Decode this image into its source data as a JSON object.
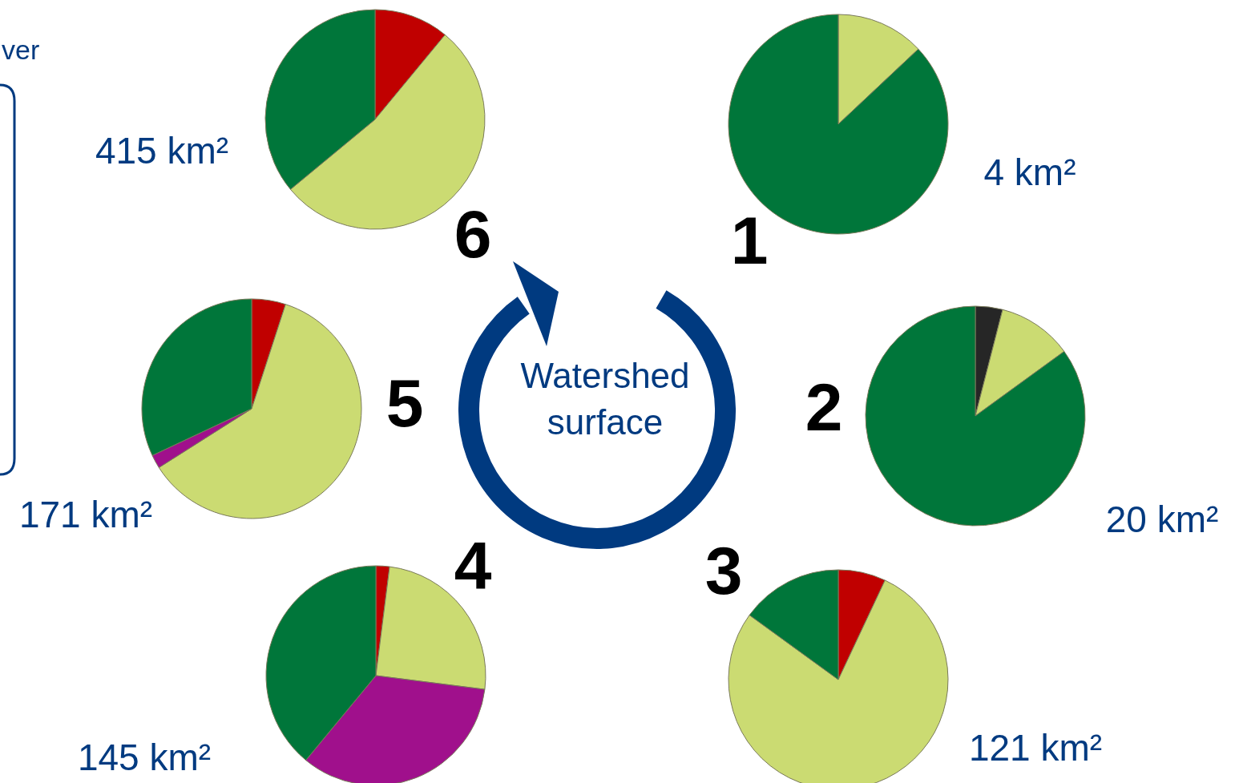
{
  "chart_data": [
    {
      "type": "pie",
      "title": "1",
      "annotations": [
        "4 km²"
      ],
      "categories": [
        null,
        null
      ],
      "values": [
        13,
        87
      ],
      "colors": [
        "#cbdb72",
        "#00763a"
      ]
    },
    {
      "type": "pie",
      "title": "2",
      "annotations": [
        "20 km²"
      ],
      "categories": [
        null,
        null,
        null
      ],
      "values": [
        4,
        11,
        85
      ],
      "colors": [
        "#262626",
        "#cbdb72",
        "#00763a"
      ]
    },
    {
      "type": "pie",
      "title": "3",
      "annotations": [
        "121 km²"
      ],
      "categories": [
        null,
        null,
        null
      ],
      "values": [
        7,
        78,
        15
      ],
      "colors": [
        "#c00000",
        "#cbdb72",
        "#00763a"
      ]
    },
    {
      "type": "pie",
      "title": "4",
      "annotations": [
        "145 km²"
      ],
      "categories": [
        null,
        null,
        null,
        null
      ],
      "values": [
        2,
        25,
        34,
        39
      ],
      "colors": [
        "#c00000",
        "#cbdb72",
        "#a0108c",
        "#00763a"
      ]
    },
    {
      "type": "pie",
      "title": "5",
      "annotations": [
        "171 km²"
      ],
      "categories": [
        null,
        null,
        null,
        null
      ],
      "values": [
        5,
        61,
        2,
        32
      ],
      "colors": [
        "#c00000",
        "#cbdb72",
        "#a0108c",
        "#00763a"
      ]
    },
    {
      "type": "pie",
      "title": "6",
      "annotations": [
        "415 km²"
      ],
      "categories": [
        null,
        null,
        null
      ],
      "values": [
        11,
        53,
        36
      ],
      "colors": [
        "#c00000",
        "#cbdb72",
        "#00763a"
      ]
    },
    {
      "type": "other",
      "annotations": [
        "Watershed surface",
        "ver"
      ]
    }
  ]
}
